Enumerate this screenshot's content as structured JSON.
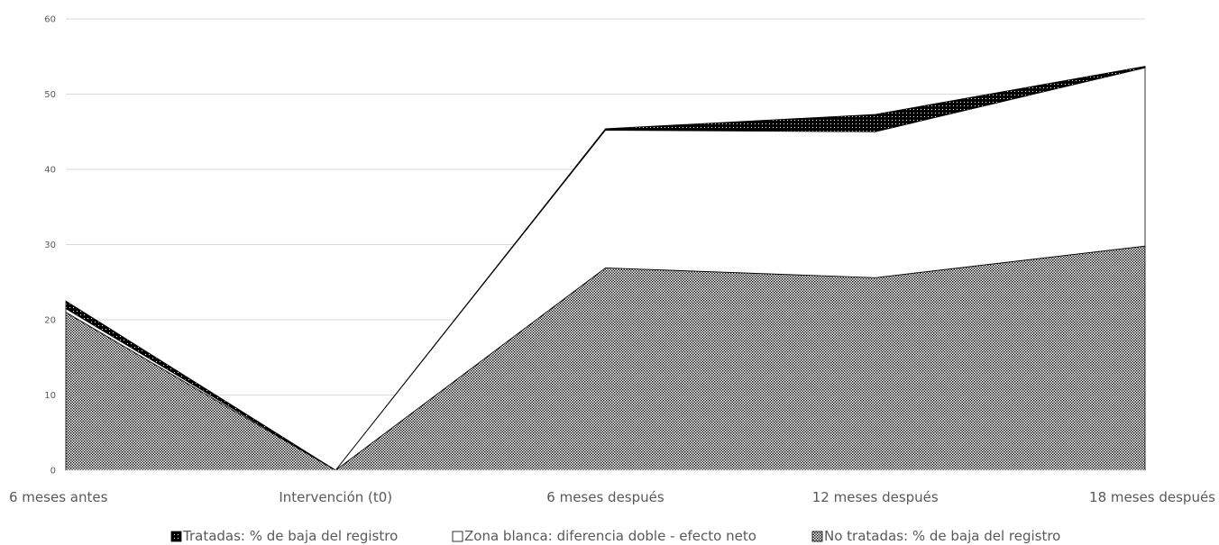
{
  "chart_data": {
    "type": "area",
    "title": "",
    "xlabel": "",
    "ylabel": "",
    "ylim": [
      0,
      60
    ],
    "yticks": [
      0,
      10,
      20,
      30,
      40,
      50,
      60
    ],
    "yticks_text": [
      "0",
      "10",
      "20",
      "30",
      "40",
      "50",
      "60"
    ],
    "grid": true,
    "legend_position": "bottom",
    "categories": [
      "6 meses antes",
      "Intervención (t0)",
      "6 meses después",
      "12 meses después",
      "18 meses después"
    ],
    "series": [
      {
        "name": "Tratadas: % de baja del registro",
        "fill": "black-dotted",
        "lower": [
          21.5,
          0,
          45.2,
          45.0,
          53.5
        ],
        "upper": [
          22.5,
          0,
          45.4,
          47.3,
          53.7
        ]
      },
      {
        "name": "Zona blanca: diferencia doble - efecto neto",
        "fill": "white",
        "lower": [
          21.0,
          0,
          26.9,
          25.6,
          29.8
        ],
        "upper": [
          21.5,
          0,
          45.3,
          45.0,
          53.6
        ]
      },
      {
        "name": "No tratadas: % de baja del registro",
        "fill": "dotted",
        "values": [
          21.0,
          0,
          26.9,
          25.6,
          29.8
        ]
      }
    ]
  }
}
